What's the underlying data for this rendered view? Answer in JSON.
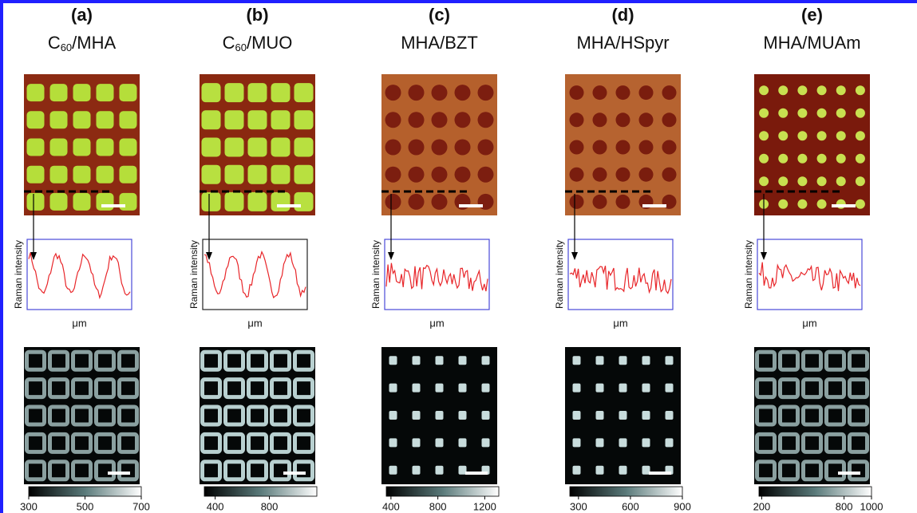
{
  "panels": [
    {
      "label": "(a)",
      "title": {
        "main": "C",
        "sub": "60",
        "rest": "/MHA"
      },
      "y_label": "Raman intensity",
      "x_label": "μm",
      "colorbar": {
        "lim": [
          300,
          700
        ],
        "ticks": [
          300,
          500,
          700
        ]
      }
    },
    {
      "label": "(b)",
      "title": {
        "main": "C",
        "sub": "60",
        "rest": "/MUO"
      },
      "y_label": "Raman intensity",
      "x_label": "μm",
      "colorbar": {
        "lim": [
          320,
          1150
        ],
        "ticks": [
          400,
          800
        ]
      }
    },
    {
      "label": "(c)",
      "title": {
        "main": "MHA/BZT"
      },
      "y_label": "Raman intensity",
      "x_label": "μm",
      "colorbar": {
        "lim": [
          360,
          1320
        ],
        "ticks": [
          400,
          800,
          1200
        ]
      }
    },
    {
      "label": "(d)",
      "title": {
        "main": "MHA/HSpyr"
      },
      "y_label": "Raman intensity",
      "x_label": "μm",
      "colorbar": {
        "lim": [
          250,
          900
        ],
        "ticks": [
          300,
          600,
          900
        ]
      }
    },
    {
      "label": "(e)",
      "title": {
        "main": "MHA/MUAm"
      },
      "y_label": "Raman intensity",
      "x_label": "μm",
      "colorbar": {
        "lim": [
          180,
          1000
        ],
        "ticks": [
          200,
          800,
          1000
        ]
      }
    }
  ]
}
